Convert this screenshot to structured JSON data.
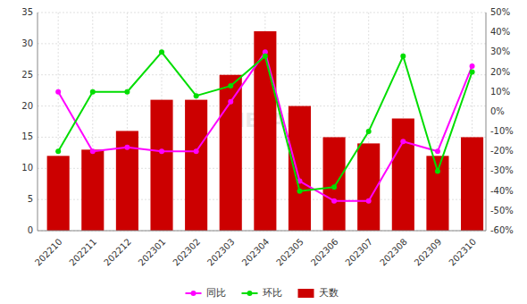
{
  "chart_data": {
    "type": "bar",
    "categories": [
      "202210",
      "202211",
      "202212",
      "202301",
      "202302",
      "202303",
      "202304",
      "202305",
      "202306",
      "202307",
      "202308",
      "202309",
      "202310"
    ],
    "series": [
      {
        "name": "同比",
        "type": "line",
        "axis": "y2",
        "color": "#ff00ff",
        "marker": "circle",
        "values": [
          10,
          -20,
          -18,
          -20,
          -20,
          5,
          30,
          -35,
          -45,
          -45,
          -15,
          -20,
          23
        ]
      },
      {
        "name": "环比",
        "type": "line",
        "axis": "y2",
        "color": "#00dd00",
        "marker": "circle",
        "values": [
          -20,
          10,
          10,
          30,
          8,
          13,
          28,
          -40,
          -38,
          -10,
          28,
          -30,
          20
        ]
      },
      {
        "name": "天数",
        "type": "bar",
        "color": "#cc0000",
        "values": [
          12,
          13,
          16,
          21,
          21,
          25,
          32,
          20,
          15,
          14,
          18,
          12,
          15
        ]
      }
    ],
    "ylim": [
      0,
      35
    ],
    "yticks": [
      0,
      5,
      10,
      15,
      20,
      25,
      30,
      35
    ],
    "y2lim": [
      -60,
      50
    ],
    "y2ticks": [
      {
        "value": -60,
        "label": "-60%"
      },
      {
        "value": -50,
        "label": "-50%"
      },
      {
        "value": -40,
        "label": "-40%"
      },
      {
        "value": -30,
        "label": "-30%"
      },
      {
        "value": -20,
        "label": "-20%"
      },
      {
        "value": -10,
        "label": "-10%"
      },
      {
        "value": 0,
        "label": "0%"
      },
      {
        "value": 10,
        "label": "10%"
      },
      {
        "value": 20,
        "label": "20%"
      },
      {
        "value": 30,
        "label": "30%"
      },
      {
        "value": 40,
        "label": "40%"
      },
      {
        "value": 50,
        "label": "50%"
      }
    ],
    "grid": true,
    "legend": "bottom",
    "annotations": [
      "METAL"
    ]
  }
}
